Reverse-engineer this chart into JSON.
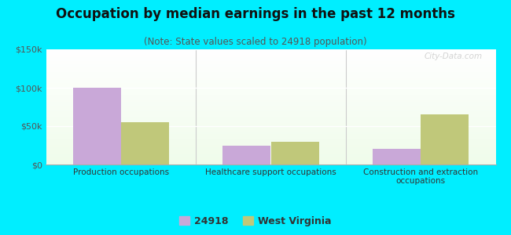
{
  "title": "Occupation by median earnings in the past 12 months",
  "subtitle": "(Note: State values scaled to 24918 population)",
  "categories": [
    "Production occupations",
    "Healthcare support occupations",
    "Construction and extraction\noccupations"
  ],
  "series": {
    "24918": [
      100000,
      25000,
      20000
    ],
    "West Virginia": [
      55000,
      30000,
      65000
    ]
  },
  "colors": {
    "24918": "#c9a8d8",
    "West Virginia": "#c0c87a"
  },
  "ylim": [
    0,
    150000
  ],
  "yticks": [
    0,
    50000,
    100000,
    150000
  ],
  "ytick_labels": [
    "$0",
    "$50k",
    "$100k",
    "$150k"
  ],
  "background_outer": "#00eeff",
  "bar_width": 0.32,
  "title_fontsize": 12,
  "subtitle_fontsize": 8.5,
  "legend_labels": [
    "24918",
    "West Virginia"
  ],
  "watermark": "City-Data.com"
}
